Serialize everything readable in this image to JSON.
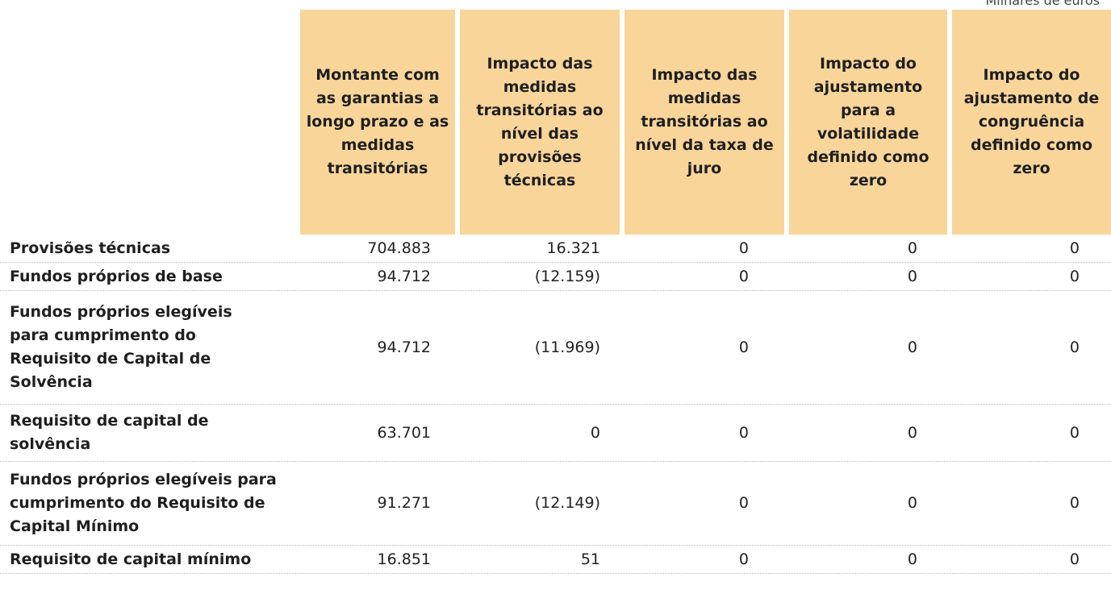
{
  "unit_note": "Milhares de euros",
  "headers": [
    "Montante com as garantias a longo prazo e as medidas transitórias",
    "Impacto das medidas transitórias ao nível das provisões técnicas",
    "Impacto das medidas transitórias ao nível da taxa de juro",
    "Impacto do ajustamento para a volatilidade definido como zero",
    "Impacto do ajustamento de congruência definido como zero"
  ],
  "rows": [
    {
      "label": "Provisões técnicas",
      "values": [
        "704.883",
        "16.321",
        "0",
        "0",
        "0"
      ]
    },
    {
      "label": "Fundos próprios de base",
      "values": [
        "94.712",
        "(12.159)",
        "0",
        "0",
        "0"
      ]
    },
    {
      "label": "Fundos próprios elegíveis para cumprimento do Requisito de Capital de Solvência",
      "values": [
        "94.712",
        "(11.969)",
        "0",
        "0",
        "0"
      ]
    },
    {
      "label": "Requisito de capital de solvência",
      "values": [
        "63.701",
        "0",
        "0",
        "0",
        "0"
      ]
    },
    {
      "label": "Fundos próprios elegíveis para cumprimento do Requisito de Capital Mínimo",
      "values": [
        "91.271",
        "(12.149)",
        "0",
        "0",
        "0"
      ]
    },
    {
      "label": "Requisito de capital mínimo",
      "values": [
        "16.851",
        "51",
        "0",
        "0",
        "0"
      ]
    }
  ]
}
